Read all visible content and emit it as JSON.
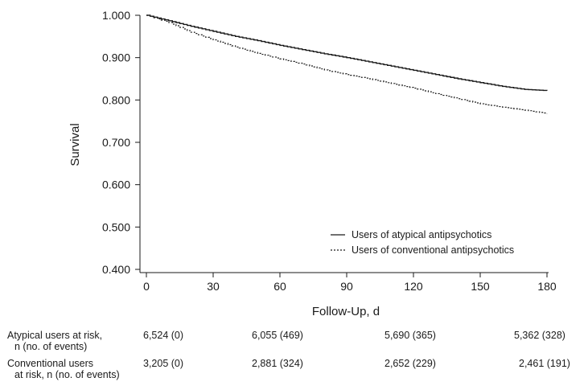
{
  "chart_data": {
    "type": "line",
    "title": "",
    "xlabel": "Follow-Up, d",
    "ylabel": "Survival",
    "xlim": [
      0,
      180
    ],
    "ylim": [
      0.4,
      1.0
    ],
    "x_ticks": [
      0,
      30,
      60,
      90,
      120,
      150,
      180
    ],
    "y_ticks": [
      "0.400",
      "0.500",
      "0.600",
      "0.700",
      "0.800",
      "0.900",
      "1.000"
    ],
    "legend_position": "bottom-right",
    "series": [
      {
        "name": "Users of atypical antipsychotics",
        "style": "solid",
        "color": "#1a1a1a",
        "x": [
          0,
          10,
          20,
          30,
          40,
          50,
          60,
          70,
          80,
          90,
          100,
          110,
          120,
          130,
          140,
          150,
          160,
          170,
          180
        ],
        "y": [
          1.0,
          0.987,
          0.974,
          0.962,
          0.95,
          0.94,
          0.929,
          0.919,
          0.909,
          0.9,
          0.89,
          0.88,
          0.87,
          0.86,
          0.85,
          0.841,
          0.832,
          0.825,
          0.822
        ]
      },
      {
        "name": "Users of conventional antipsychotics",
        "style": "dotted",
        "color": "#1a1a1a",
        "x": [
          0,
          10,
          20,
          30,
          40,
          50,
          60,
          70,
          80,
          90,
          100,
          110,
          120,
          130,
          140,
          150,
          160,
          170,
          180
        ],
        "y": [
          1.0,
          0.983,
          0.96,
          0.942,
          0.925,
          0.91,
          0.897,
          0.885,
          0.871,
          0.86,
          0.85,
          0.839,
          0.828,
          0.815,
          0.803,
          0.791,
          0.783,
          0.776,
          0.768
        ]
      }
    ]
  },
  "risk_table": {
    "rows": [
      {
        "label_line1": "Atypical users at risk,",
        "label_line2": "n (no. of events)",
        "cells": [
          "6,524 (0)",
          "6,055 (469)",
          "5,690 (365)",
          "5,362 (328)"
        ]
      },
      {
        "label_line1": "Conventional users",
        "label_line2": "at risk, n (no. of events)",
        "cells": [
          "3,205 (0)",
          "2,881 (324)",
          "2,652 (229)",
          "2,461 (191)"
        ]
      }
    ]
  }
}
